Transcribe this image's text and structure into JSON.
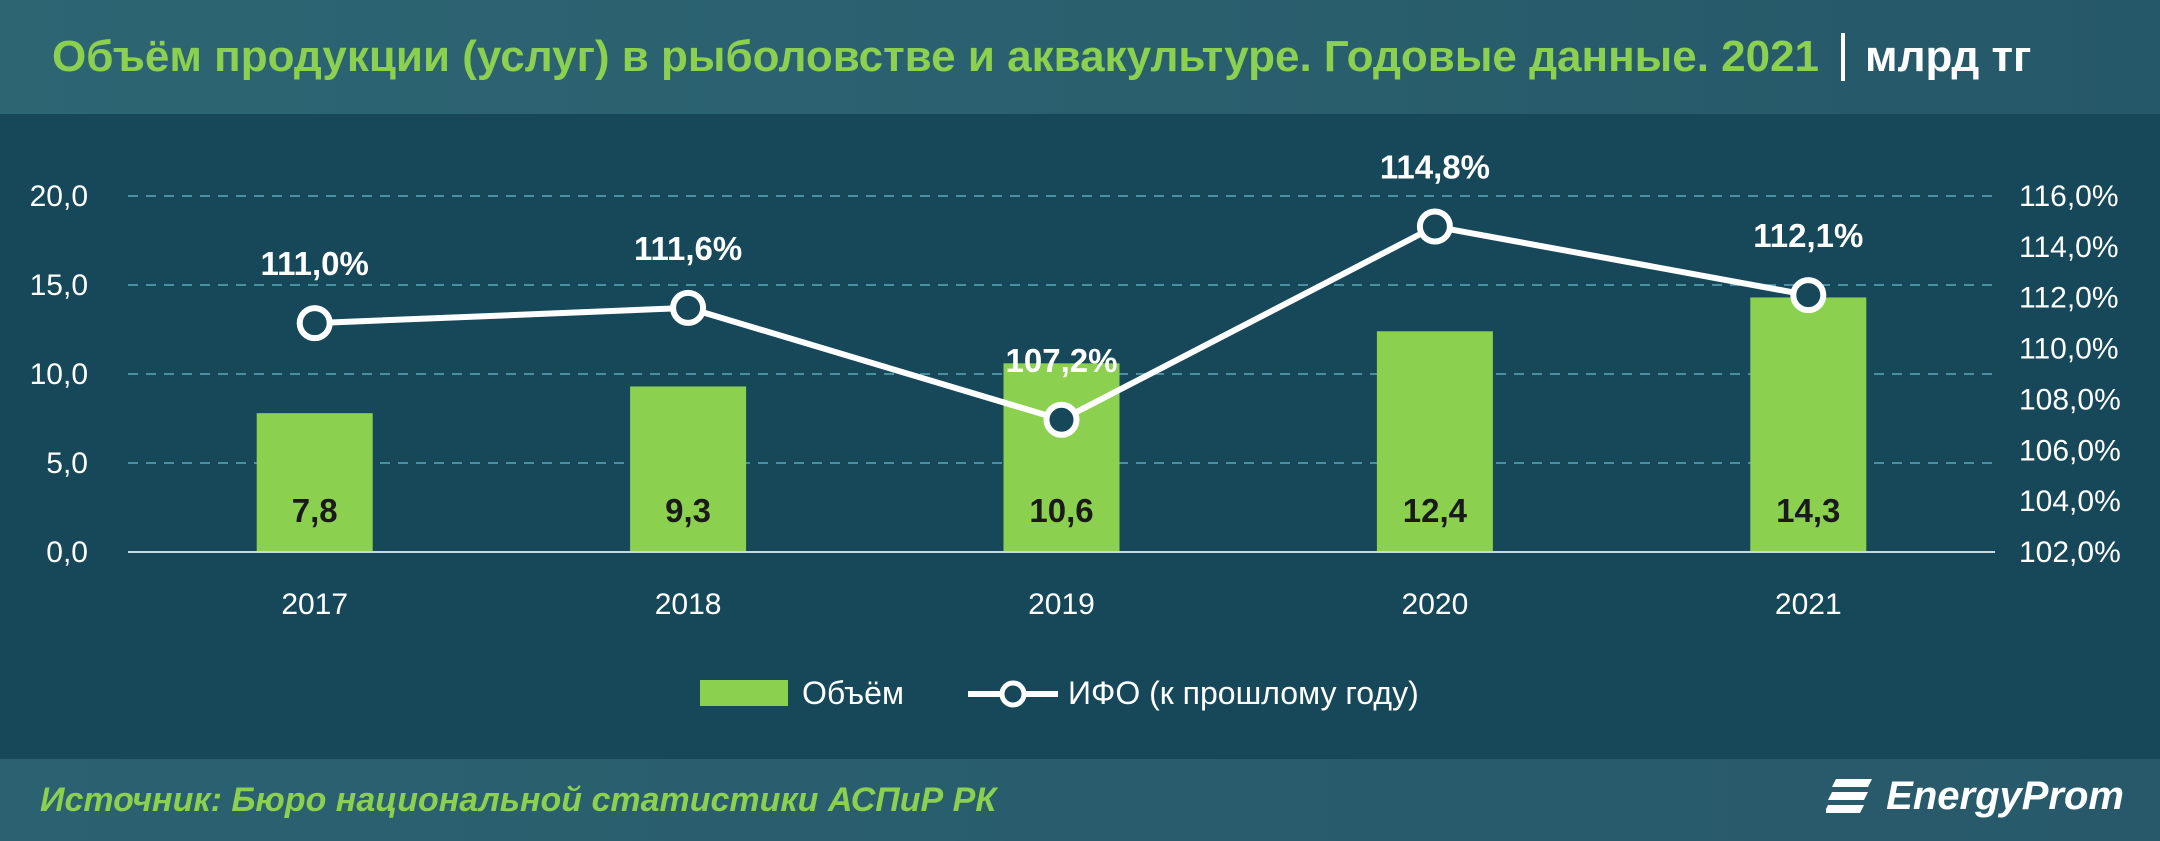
{
  "header": {
    "title": "Объём продукции (услуг) в рыболовстве и аквакультуре. Годовые данные. 2021",
    "unit": "млрд тг"
  },
  "footer": {
    "source": "Источник: Бюро национальной статистики АСПиР РК",
    "logo_text": "EnergyProm"
  },
  "colors": {
    "bar": "#8cd04f",
    "line": "#ffffff",
    "gridline": "#4b8fa3",
    "baseline": "#c8d9de",
    "label_on_bar": "#1a1a1a",
    "label_on_line": "#ffffff",
    "marker_fill": "#17485a"
  },
  "chart_data": {
    "type": "bar",
    "categories": [
      "2017",
      "2018",
      "2019",
      "2020",
      "2021"
    ],
    "series": [
      {
        "name": "Объём",
        "type": "bar",
        "axis": "left",
        "values": [
          7.8,
          9.3,
          10.6,
          12.4,
          14.3
        ],
        "labels": [
          "7,8",
          "9,3",
          "10,6",
          "12,4",
          "14,3"
        ]
      },
      {
        "name": "ИФО (к прошлому году)",
        "type": "line",
        "axis": "right",
        "values": [
          111.0,
          111.6,
          107.2,
          114.8,
          112.1
        ],
        "labels": [
          "111,0%",
          "111,6%",
          "107,2%",
          "114,8%",
          "112,1%"
        ]
      }
    ],
    "y_left": {
      "min": 0,
      "max": 20,
      "ticks": [
        0,
        5,
        10,
        15,
        20
      ],
      "tick_labels": [
        "0,0",
        "5,0",
        "10,0",
        "15,0",
        "20,0"
      ]
    },
    "y_right": {
      "min": 102,
      "max": 116,
      "ticks": [
        102,
        104,
        106,
        108,
        110,
        112,
        114,
        116
      ],
      "tick_labels": [
        "102,0%",
        "104,0%",
        "106,0%",
        "108,0%",
        "110,0%",
        "112,0%",
        "114,0%",
        "116,0%"
      ]
    },
    "grid": true,
    "legend_position": "bottom"
  }
}
